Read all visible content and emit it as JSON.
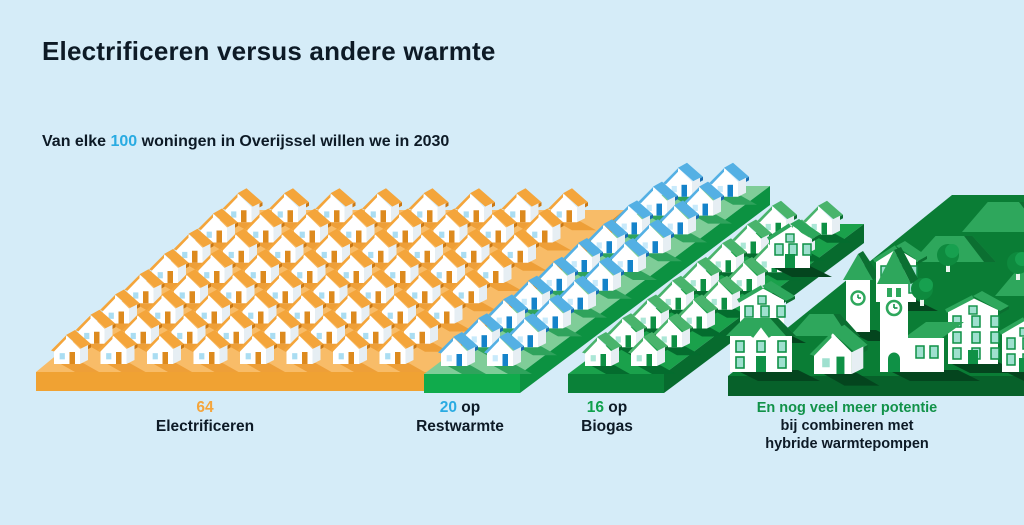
{
  "title": "Electrificeren versus andere warmte",
  "subtitle": {
    "prefix": "Van elke ",
    "highlight": "100",
    "suffix": " woningen in Overijssel willen we in 2030"
  },
  "groups": [
    {
      "id": "electrificeren",
      "value": "64",
      "suffix": "",
      "label": "Electrificeren",
      "count": 64,
      "value_color": "#f5a53c"
    },
    {
      "id": "restwarmte",
      "value": "20",
      "suffix": " op",
      "label": "Restwarmte",
      "count": 20,
      "value_color": "#29abe2"
    },
    {
      "id": "biogas",
      "value": "16",
      "suffix": " op",
      "label": "Biogas",
      "count": 16,
      "value_color": "#0fa14c"
    },
    {
      "id": "hybride",
      "lines": [
        "En nog veel meer potentie",
        "bij combineren met",
        "hybride warmtepompen"
      ]
    }
  ],
  "colors": {
    "background": "#d5ecf8",
    "text_dark": "#0d1a26",
    "accent_blue": "#29abe2",
    "accent_green": "#119249",
    "accent_orange": "#f5a53c"
  },
  "palettes": {
    "electrificeren": {
      "platform_top": "#f8bc68",
      "platform_front": "#f0a233",
      "platform_side": "#e08f20",
      "shadow": "#ee9f38",
      "roof": "#f4a53b",
      "roof_dark": "#c97714",
      "door": "#dd8a1e",
      "window": "#aaddf2"
    },
    "restwarmte": {
      "platform_top": "#7fcd98",
      "platform_front": "#10ab4c",
      "platform_side": "#0c9241",
      "shadow": "#2fa35c",
      "roof": "#54b0e4",
      "roof_dark": "#176cb0",
      "door": "#1583ca",
      "window": "#c8eafb"
    },
    "biogas": {
      "platform_top": "#1aa14b",
      "platform_front": "#0a8138",
      "platform_side": "#076b2e",
      "shadow": "#046c2e",
      "roof": "#49b46c",
      "roof_dark": "#0a6c30",
      "door": "#0e9044",
      "window": "#abe7d6"
    },
    "hybride": {
      "platform_top": "#0a7d35",
      "platform_front": "#07612a",
      "shadow": "#04451e",
      "roof": "#2ea75c",
      "roof_dark": "#0b6f31",
      "window": "#9fe0cf",
      "window_frame": "#0f9146",
      "wall": "#ffffff",
      "tree": "#0e8a3e",
      "tree_light": "#17a04f",
      "trunk": "#eaf5ee"
    }
  },
  "chart_data": {
    "type": "bar",
    "variant": "isometric pictogram of houses",
    "title": "Electrificeren versus andere warmte",
    "subtitle": "Van elke 100 woningen in Overijssel willen we in 2030",
    "unit": "woningen per 100",
    "total": 100,
    "categories": [
      "Electrificeren",
      "Restwarmte",
      "Biogas"
    ],
    "values": [
      64,
      20,
      16
    ],
    "colors": [
      "#f5a53c",
      "#29abe2",
      "#0fa14c"
    ],
    "annotation": "En nog veel meer potentie bij combineren met hybride warmtepompen",
    "legend_position": "below-each-platform",
    "grid": false
  }
}
